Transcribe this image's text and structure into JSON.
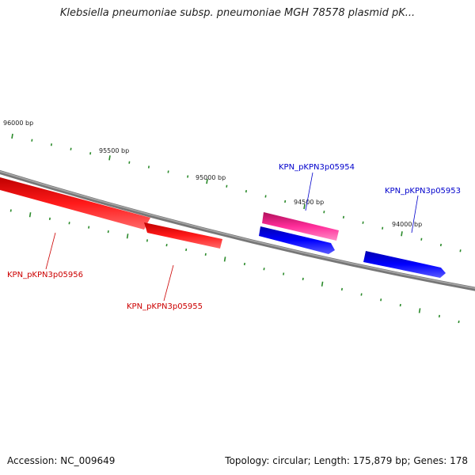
{
  "title": "Klebsiella pneumoniae subsp. pneumoniae MGH 78578 plasmid pK...",
  "footer": {
    "accession": "Accession: NC_009649",
    "summary": "Topology: circular; Length: 175,879 bp; Genes: 178"
  },
  "ruler": {
    "labels": [
      "96000 bp",
      "95500 bp",
      "95000 bp",
      "94500 bp",
      "94000 bp"
    ]
  },
  "genes": [
    {
      "name": "KPN_pKPN3p05956",
      "strand": "reverse",
      "color": "#ff0000"
    },
    {
      "name": "KPN_pKPN3p05955",
      "strand": "reverse",
      "color": "#ff0000"
    },
    {
      "name": "KPN_pKPN3p05954",
      "strand": "forward",
      "color": "#0000ff"
    },
    {
      "name": "KPN_pKPN3p05953",
      "strand": "forward",
      "color": "#0000ff"
    }
  ],
  "colors": {
    "backbone": "#808080",
    "ticks": "#2a8a2a",
    "reverse_gene": "#ff0000",
    "forward_gene": "#0000ff",
    "highlight_gene": "#ff2d9a",
    "reverse_label": "#cc0000",
    "forward_label": "#0000cc"
  }
}
